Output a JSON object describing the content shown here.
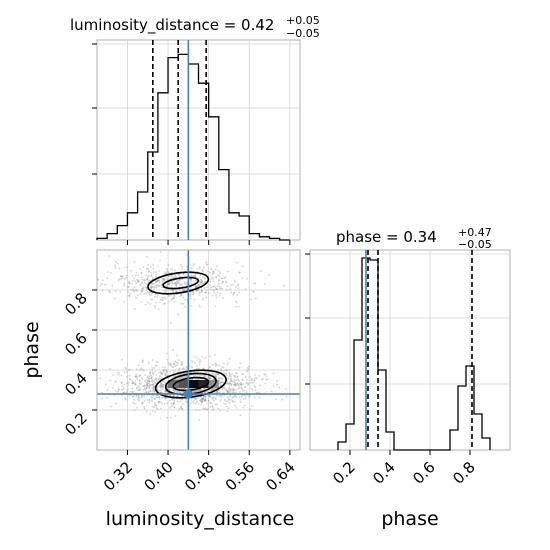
{
  "chart_data": [
    {
      "type": "histogram",
      "panel": "luminosity_distance marginal",
      "title": {
        "text": "luminosity_distance = 0.42",
        "sup": "+0.05",
        "sub": "−0.05"
      },
      "xlim": [
        0.26,
        0.66
      ],
      "ylim": [
        0,
        1.25
      ],
      "x_ticks": [
        0.32,
        0.4,
        0.48,
        0.56,
        0.64
      ],
      "grid": true,
      "bin_edges": [
        0.26,
        0.28,
        0.3,
        0.32,
        0.34,
        0.36,
        0.38,
        0.4,
        0.42,
        0.44,
        0.46,
        0.48,
        0.5,
        0.52,
        0.54,
        0.56,
        0.58,
        0.6,
        0.62,
        0.64
      ],
      "counts": [
        0.01,
        0.04,
        0.09,
        0.17,
        0.3,
        0.55,
        0.92,
        1.14,
        1.16,
        1.1,
        0.98,
        0.77,
        0.44,
        0.17,
        0.15,
        0.04,
        0.02,
        0.01,
        0.0
      ],
      "quantile_lines": [
        0.37,
        0.42,
        0.475
      ],
      "truth": 0.44,
      "colors": {
        "hist": "#000000",
        "truth": "#4682b4"
      }
    },
    {
      "type": "scatter",
      "panel": "luminosity_distance vs phase 2D density",
      "xlabel": "luminosity_distance",
      "ylabel": "phase",
      "xlim": [
        0.26,
        0.66
      ],
      "ylim": [
        0.0,
        1.0
      ],
      "x_ticks": [
        0.32,
        0.4,
        0.48,
        0.56,
        0.64
      ],
      "y_ticks": [
        0.2,
        0.4,
        0.6,
        0.8
      ],
      "grid": true,
      "density_blobs": [
        {
          "cx": 0.42,
          "cy": 0.83,
          "sx": 0.055,
          "sy": 0.04,
          "n": 650
        },
        {
          "cx": 0.44,
          "cy": 0.32,
          "sx": 0.055,
          "sy": 0.045,
          "n": 1400
        }
      ],
      "dense_cells": [
        {
          "x": 0.45,
          "y": 0.33,
          "level": 1.0
        },
        {
          "x": 0.47,
          "y": 0.33,
          "level": 0.9
        },
        {
          "x": 0.43,
          "y": 0.33,
          "level": 0.7
        },
        {
          "x": 0.41,
          "y": 0.33,
          "level": 0.6
        },
        {
          "x": 0.49,
          "y": 0.33,
          "level": 0.45
        },
        {
          "x": 0.45,
          "y": 0.29,
          "level": 0.3
        },
        {
          "x": 0.43,
          "y": 0.37,
          "level": 0.25
        }
      ],
      "contours": [
        {
          "cx": 0.425,
          "cy": 0.835,
          "rx": 0.035,
          "ry": 0.025
        },
        {
          "cx": 0.42,
          "cy": 0.835,
          "rx": 0.06,
          "ry": 0.05
        },
        {
          "cx": 0.445,
          "cy": 0.33,
          "rx": 0.035,
          "ry": 0.03
        },
        {
          "cx": 0.445,
          "cy": 0.33,
          "rx": 0.05,
          "ry": 0.05
        },
        {
          "cx": 0.445,
          "cy": 0.33,
          "rx": 0.07,
          "ry": 0.065
        }
      ],
      "truth": {
        "x": 0.44,
        "y": 0.28
      },
      "colors": {
        "points": "#808080",
        "contour": "#000000",
        "truth": "#4682b4"
      }
    },
    {
      "type": "histogram",
      "panel": "phase marginal",
      "title": {
        "text": "phase = 0.34",
        "sup": "+0.47",
        "sub": "−0.05"
      },
      "xlabel": "phase",
      "xlim": [
        0.0,
        1.0
      ],
      "ylim": [
        0,
        1.0
      ],
      "x_ticks": [
        0.2,
        0.4,
        0.6,
        0.8
      ],
      "grid": true,
      "bin_edges": [
        0.14,
        0.18,
        0.22,
        0.26,
        0.3,
        0.34,
        0.38,
        0.42,
        0.7,
        0.74,
        0.78,
        0.82,
        0.86,
        0.9
      ],
      "counts": [
        0.04,
        0.13,
        0.55,
        0.96,
        0.95,
        0.4,
        0.09,
        0.0,
        0.1,
        0.32,
        0.42,
        0.18,
        0.06
      ],
      "quantile_lines": [
        0.29,
        0.34,
        0.81
      ],
      "truth": 0.28,
      "colors": {
        "hist": "#000000",
        "truth": "#4682b4"
      }
    }
  ]
}
